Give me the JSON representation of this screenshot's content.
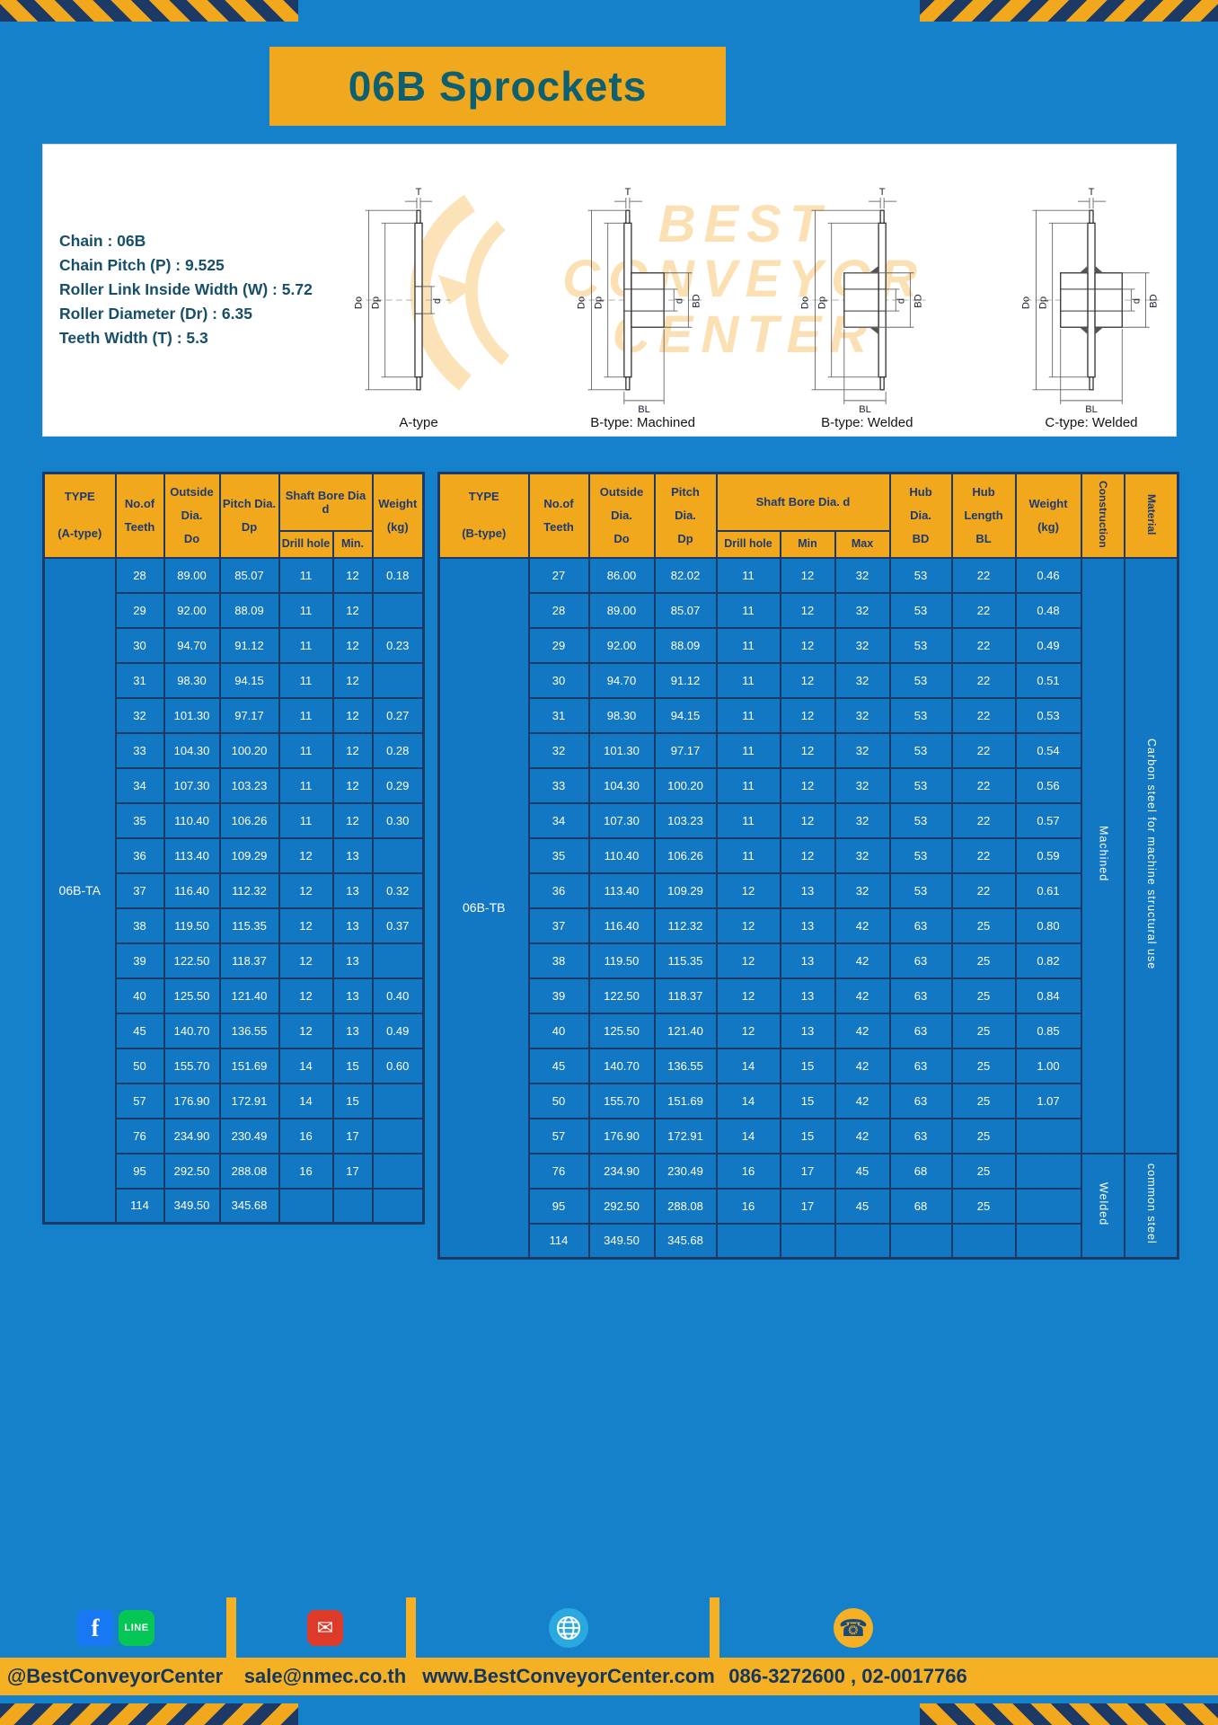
{
  "page": {
    "title": "06B Sprockets"
  },
  "colors": {
    "background_blue": "#1581cb",
    "cell_blue": "#1378c4",
    "accent_yellow": "#f2a81d",
    "border_navy": "#1c3a66",
    "title_teal": "#0e5f70"
  },
  "specs": {
    "lines": [
      "Chain : 06B",
      "Chain Pitch (P) : 9.525",
      "Roller Link Inside Width (W) : 5.72",
      "Roller Diameter (Dr) : 6.35",
      "Teeth Width (T) : 5.3"
    ]
  },
  "watermark": {
    "lines": [
      "BEST",
      "CONVEYOR",
      "CENTER"
    ]
  },
  "figures": [
    {
      "caption": "A-type",
      "dims": {
        "t": "T",
        "do": "Do",
        "dp": "Dp",
        "d": "d"
      }
    },
    {
      "caption": "B-type: Machined",
      "dims": {
        "t": "T",
        "do": "Do",
        "dp": "Dp",
        "d": "d",
        "bd": "BD",
        "bl": "BL"
      }
    },
    {
      "caption": "B-type: Welded",
      "dims": {
        "t": "T",
        "do": "Do",
        "dp": "Dp",
        "d": "d",
        "bd": "BD",
        "bl": "BL"
      }
    },
    {
      "caption": "C-type: Welded",
      "dims": {
        "t": "T",
        "do": "Do",
        "dp": "Dp",
        "d": "d",
        "bd": "BD",
        "bl": "BL"
      }
    }
  ],
  "table_a": {
    "type_label": "06B-TA",
    "headers": {
      "type": "TYPE\n(A-type)",
      "teeth": "No.of\nTeeth",
      "outside": "Outside\nDia.\nDo",
      "pitch": "Pitch Dia.\nDp",
      "shaft_bore": "Shaft Bore Dia d",
      "drill": "Drill hole",
      "min": "Min.",
      "weight": "Weight\n(kg)"
    },
    "rows": [
      [
        "28",
        "89.00",
        "85.07",
        "11",
        "12",
        "0.18"
      ],
      [
        "29",
        "92.00",
        "88.09",
        "11",
        "12",
        ""
      ],
      [
        "30",
        "94.70",
        "91.12",
        "11",
        "12",
        "0.23"
      ],
      [
        "31",
        "98.30",
        "94.15",
        "11",
        "12",
        ""
      ],
      [
        "32",
        "101.30",
        "97.17",
        "11",
        "12",
        "0.27"
      ],
      [
        "33",
        "104.30",
        "100.20",
        "11",
        "12",
        "0.28"
      ],
      [
        "34",
        "107.30",
        "103.23",
        "11",
        "12",
        "0.29"
      ],
      [
        "35",
        "110.40",
        "106.26",
        "11",
        "12",
        "0.30"
      ],
      [
        "36",
        "113.40",
        "109.29",
        "12",
        "13",
        ""
      ],
      [
        "37",
        "116.40",
        "112.32",
        "12",
        "13",
        "0.32"
      ],
      [
        "38",
        "119.50",
        "115.35",
        "12",
        "13",
        "0.37"
      ],
      [
        "39",
        "122.50",
        "118.37",
        "12",
        "13",
        ""
      ],
      [
        "40",
        "125.50",
        "121.40",
        "12",
        "13",
        "0.40"
      ],
      [
        "45",
        "140.70",
        "136.55",
        "12",
        "13",
        "0.49"
      ],
      [
        "50",
        "155.70",
        "151.69",
        "14",
        "15",
        "0.60"
      ],
      [
        "57",
        "176.90",
        "172.91",
        "14",
        "15",
        ""
      ],
      [
        "76",
        "234.90",
        "230.49",
        "16",
        "17",
        ""
      ],
      [
        "95",
        "292.50",
        "288.08",
        "16",
        "17",
        ""
      ],
      [
        "114",
        "349.50",
        "345.68",
        "",
        "",
        ""
      ]
    ]
  },
  "table_b": {
    "type_label": "06B-TB",
    "headers": {
      "type": "TYPE\n(B-type)",
      "teeth": "No.of\nTeeth",
      "outside": "Outside\nDia.\nDo",
      "pitch": "Pitch\nDia.\nDp",
      "shaft_bore": "Shaft Bore Dia. d",
      "drill": "Drill hole",
      "min": "Min",
      "max": "Max",
      "hub_dia": "Hub\nDia.\nBD",
      "hub_length": "Hub\nLength\nBL",
      "weight": "Weight\n(kg)",
      "construction": "Construction",
      "material": "Material"
    },
    "rows": [
      [
        "27",
        "86.00",
        "82.02",
        "11",
        "12",
        "32",
        "53",
        "22",
        "0.46"
      ],
      [
        "28",
        "89.00",
        "85.07",
        "11",
        "12",
        "32",
        "53",
        "22",
        "0.48"
      ],
      [
        "29",
        "92.00",
        "88.09",
        "11",
        "12",
        "32",
        "53",
        "22",
        "0.49"
      ],
      [
        "30",
        "94.70",
        "91.12",
        "11",
        "12",
        "32",
        "53",
        "22",
        "0.51"
      ],
      [
        "31",
        "98.30",
        "94.15",
        "11",
        "12",
        "32",
        "53",
        "22",
        "0.53"
      ],
      [
        "32",
        "101.30",
        "97.17",
        "11",
        "12",
        "32",
        "53",
        "22",
        "0.54"
      ],
      [
        "33",
        "104.30",
        "100.20",
        "11",
        "12",
        "32",
        "53",
        "22",
        "0.56"
      ],
      [
        "34",
        "107.30",
        "103.23",
        "11",
        "12",
        "32",
        "53",
        "22",
        "0.57"
      ],
      [
        "35",
        "110.40",
        "106.26",
        "11",
        "12",
        "32",
        "53",
        "22",
        "0.59"
      ],
      [
        "36",
        "113.40",
        "109.29",
        "12",
        "13",
        "32",
        "53",
        "22",
        "0.61"
      ],
      [
        "37",
        "116.40",
        "112.32",
        "12",
        "13",
        "42",
        "63",
        "25",
        "0.80"
      ],
      [
        "38",
        "119.50",
        "115.35",
        "12",
        "13",
        "42",
        "63",
        "25",
        "0.82"
      ],
      [
        "39",
        "122.50",
        "118.37",
        "12",
        "13",
        "42",
        "63",
        "25",
        "0.84"
      ],
      [
        "40",
        "125.50",
        "121.40",
        "12",
        "13",
        "42",
        "63",
        "25",
        "0.85"
      ],
      [
        "45",
        "140.70",
        "136.55",
        "14",
        "15",
        "42",
        "63",
        "25",
        "1.00"
      ],
      [
        "50",
        "155.70",
        "151.69",
        "14",
        "15",
        "42",
        "63",
        "25",
        "1.07"
      ],
      [
        "57",
        "176.90",
        "172.91",
        "14",
        "15",
        "42",
        "63",
        "25",
        ""
      ],
      [
        "76",
        "234.90",
        "230.49",
        "16",
        "17",
        "45",
        "68",
        "25",
        ""
      ],
      [
        "95",
        "292.50",
        "288.08",
        "16",
        "17",
        "45",
        "68",
        "25",
        ""
      ],
      [
        "114",
        "349.50",
        "345.68",
        "",
        "",
        "",
        "",
        "",
        ""
      ]
    ],
    "construction_spans": [
      {
        "label": "Machined",
        "start": 0,
        "count": 17
      },
      {
        "label": "Welded",
        "start": 17,
        "count": 3
      }
    ],
    "material_spans": [
      {
        "label": "Carbon steel for machine structural use",
        "start": 0,
        "count": 17
      },
      {
        "label": "common steel",
        "start": 17,
        "count": 3
      }
    ]
  },
  "footer": {
    "facebook_label": "f",
    "line_label": "LINE",
    "sections": [
      {
        "text": "@BestConveyorCenter"
      },
      {
        "text": "sale@nmec.co.th"
      },
      {
        "text": "www.BestConveyorCenter.com"
      },
      {
        "text": "086-3272600 , 02-0017766"
      }
    ]
  }
}
